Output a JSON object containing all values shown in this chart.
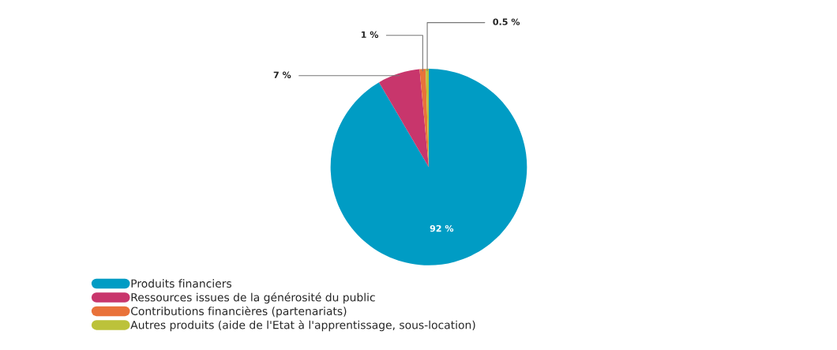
{
  "chart_data": {
    "type": "pie",
    "categories": [
      "Produits financiers",
      "Ressources issues de la générosité du public",
      "Contributions financières (partenariats)",
      "Autres produits (aide de l'Etat à l'apprentissage, sous-location)"
    ],
    "values": [
      92,
      7,
      1,
      0.5
    ],
    "colors": [
      "#009cc4",
      "#c8366c",
      "#e9723a",
      "#bcc23a"
    ],
    "value_labels": [
      "92 %",
      "7 %",
      "1 %",
      "0.5 %"
    ],
    "legend": "bottom left"
  }
}
